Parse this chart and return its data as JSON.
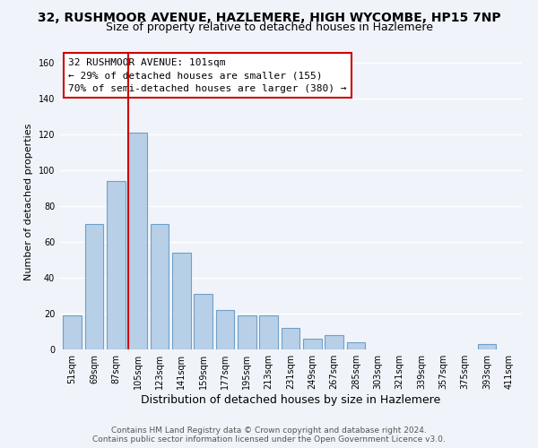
{
  "title": "32, RUSHMOOR AVENUE, HAZLEMERE, HIGH WYCOMBE, HP15 7NP",
  "subtitle": "Size of property relative to detached houses in Hazlemere",
  "xlabel": "Distribution of detached houses by size in Hazlemere",
  "ylabel": "Number of detached properties",
  "bar_labels": [
    "51sqm",
    "69sqm",
    "87sqm",
    "105sqm",
    "123sqm",
    "141sqm",
    "159sqm",
    "177sqm",
    "195sqm",
    "213sqm",
    "231sqm",
    "249sqm",
    "267sqm",
    "285sqm",
    "303sqm",
    "321sqm",
    "339sqm",
    "357sqm",
    "375sqm",
    "393sqm",
    "411sqm"
  ],
  "bar_values": [
    19,
    70,
    94,
    121,
    70,
    54,
    31,
    22,
    19,
    19,
    12,
    6,
    8,
    4,
    0,
    0,
    0,
    0,
    0,
    3,
    0
  ],
  "bar_color": "#b8cfe8",
  "bar_edge_color": "#6fa0c8",
  "ylim": [
    0,
    165
  ],
  "yticks": [
    0,
    20,
    40,
    60,
    80,
    100,
    120,
    140,
    160
  ],
  "vline_color": "#cc0000",
  "annotation_title": "32 RUSHMOOR AVENUE: 101sqm",
  "annotation_line1": "← 29% of detached houses are smaller (155)",
  "annotation_line2": "70% of semi-detached houses are larger (380) →",
  "annotation_box_color": "#ffffff",
  "annotation_box_edge": "#cc0000",
  "footer1": "Contains HM Land Registry data © Crown copyright and database right 2024.",
  "footer2": "Contains public sector information licensed under the Open Government Licence v3.0.",
  "background_color": "#f0f4fa",
  "grid_color": "#ffffff",
  "title_fontsize": 10,
  "subtitle_fontsize": 9,
  "tick_fontsize": 7,
  "xlabel_fontsize": 9,
  "ylabel_fontsize": 8,
  "footer_fontsize": 6.5,
  "annotation_fontsize": 8
}
